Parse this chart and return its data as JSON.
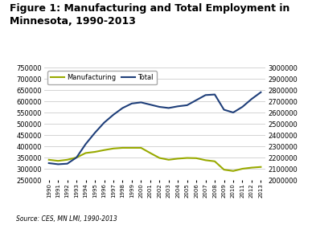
{
  "years": [
    1990,
    1991,
    1992,
    1993,
    1994,
    1995,
    1996,
    1997,
    1998,
    1999,
    2000,
    2001,
    2002,
    2003,
    2004,
    2005,
    2006,
    2007,
    2008,
    2009,
    2010,
    2011,
    2012,
    2013
  ],
  "manufacturing": [
    340000,
    335000,
    340000,
    350000,
    370000,
    375000,
    383000,
    390000,
    393000,
    393000,
    393000,
    370000,
    348000,
    340000,
    345000,
    348000,
    347000,
    338000,
    333000,
    296000,
    290000,
    300000,
    305000,
    308000
  ],
  "total": [
    2150000,
    2140000,
    2145000,
    2200000,
    2320000,
    2420000,
    2510000,
    2580000,
    2640000,
    2680000,
    2690000,
    2670000,
    2650000,
    2640000,
    2655000,
    2665000,
    2710000,
    2755000,
    2760000,
    2625000,
    2600000,
    2650000,
    2720000,
    2780000
  ],
  "mfg_color": "#99AA00",
  "total_color": "#1F3F7A",
  "left_ylim": [
    250000,
    750000
  ],
  "right_ylim": [
    2000000,
    3000000
  ],
  "left_yticks": [
    250000,
    300000,
    350000,
    400000,
    450000,
    500000,
    550000,
    600000,
    650000,
    700000,
    750000
  ],
  "right_yticks": [
    2000000,
    2100000,
    2200000,
    2300000,
    2400000,
    2500000,
    2600000,
    2700000,
    2800000,
    2900000,
    3000000
  ],
  "title": "Figure 1: Manufacturing and Total Employment in\nMinnesota, 1990-2013",
  "source": "Source: CES, MN LMI, 1990-2013",
  "legend_labels": [
    "Manufacturing",
    "Total"
  ],
  "background_color": "#ffffff",
  "grid_color": "#cccccc"
}
